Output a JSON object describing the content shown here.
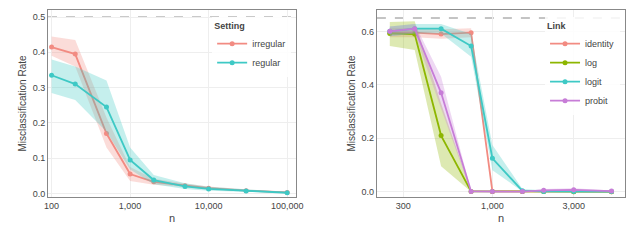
{
  "chart_data": [
    {
      "type": "line",
      "x_label": "n",
      "y_label": "Misclassification Rate",
      "log": "x",
      "grid": true,
      "xlim": [
        90,
        130000
      ],
      "ylim": [
        -0.01,
        0.52
      ],
      "xticks": [
        100,
        {
          "value": 1000,
          "label": "1,000"
        },
        {
          "value": 10000,
          "label": "10,000"
        },
        {
          "value": 100000,
          "label": "100,000"
        }
      ],
      "yticks": [
        {
          "value": 0.0,
          "label": "0.0"
        },
        0.1,
        0.2,
        0.3,
        0.4,
        0.5
      ],
      "reference_lines": [
        {
          "y": 0.5,
          "line_style": "dashed",
          "color": "#888888"
        }
      ],
      "legend": "upper right",
      "legend_title": "Setting",
      "marker": "circle",
      "series": [
        {
          "name": "irregular",
          "color": "#F28B82",
          "x": [
            100,
            200,
            500,
            1000,
            2000,
            5000,
            10000,
            30000,
            100000
          ],
          "values": [
            0.415,
            0.395,
            0.17,
            0.055,
            0.033,
            0.022,
            0.015,
            0.008,
            0.003
          ],
          "lower": [
            0.39,
            0.36,
            0.13,
            0.035,
            0.025,
            0.018,
            0.012,
            0.006,
            0.002
          ],
          "upper": [
            0.445,
            0.435,
            0.215,
            0.075,
            0.042,
            0.028,
            0.02,
            0.011,
            0.005
          ]
        },
        {
          "name": "regular",
          "color": "#3EC9C5",
          "x": [
            100,
            200,
            500,
            1000,
            2000,
            5000,
            10000,
            30000,
            100000
          ],
          "values": [
            0.335,
            0.31,
            0.245,
            0.095,
            0.038,
            0.02,
            0.013,
            0.007,
            0.002
          ],
          "lower": [
            0.285,
            0.265,
            0.175,
            0.068,
            0.026,
            0.013,
            0.008,
            0.005,
            0.001
          ],
          "upper": [
            0.38,
            0.36,
            0.32,
            0.13,
            0.052,
            0.029,
            0.019,
            0.011,
            0.004
          ]
        }
      ]
    },
    {
      "type": "line",
      "x_label": "n",
      "y_label": "Misclassification Rate",
      "log": "x",
      "grid": true,
      "xlim": [
        210,
        6000
      ],
      "ylim": [
        -0.02,
        0.68
      ],
      "xticks": [
        300,
        {
          "value": 1000,
          "label": "1,000"
        },
        {
          "value": 3000,
          "label": "3,000"
        }
      ],
      "yticks": [
        {
          "value": 0.0,
          "label": "0.0"
        },
        0.2,
        0.4,
        0.6
      ],
      "reference_lines": [
        {
          "y": 0.65,
          "line_style": "dashed",
          "color": "#888888"
        }
      ],
      "legend": "upper right",
      "legend_title": "Link",
      "marker": "circle",
      "series": [
        {
          "name": "identity",
          "color": "#F28B82",
          "x": [
            250,
            350,
            500,
            750,
            1000,
            1500,
            2000,
            3000,
            5000
          ],
          "values": [
            0.595,
            0.595,
            0.59,
            0.595,
            0.001,
            0.0003,
            0.0002,
            0.0001,
            0.0001
          ],
          "lower": [
            0.578,
            0.578,
            0.572,
            0.578,
            0.0,
            0.0,
            0.0,
            0.0,
            0.0
          ],
          "upper": [
            0.612,
            0.612,
            0.608,
            0.612,
            0.003,
            0.001,
            0.0005,
            0.0002,
            0.0002
          ]
        },
        {
          "name": "log",
          "color": "#8DB600",
          "x": [
            250,
            350,
            500,
            750,
            1000,
            1500,
            2000,
            3000,
            5000
          ],
          "values": [
            0.592,
            0.59,
            0.21,
            0.001,
            0.0008,
            0.0003,
            0.0002,
            0.0001,
            0.0001
          ],
          "lower": [
            0.545,
            0.53,
            0.095,
            0.0,
            0.0,
            0.0,
            0.0,
            0.0,
            0.0
          ],
          "upper": [
            0.635,
            0.638,
            0.33,
            0.004,
            0.002,
            0.001,
            0.0005,
            0.0002,
            0.0002
          ]
        },
        {
          "name": "logit",
          "color": "#3EC9C5",
          "x": [
            250,
            350,
            500,
            750,
            1000,
            1500,
            2000,
            3000,
            5000
          ],
          "values": [
            0.6,
            0.61,
            0.61,
            0.545,
            0.125,
            0.003,
            0.001,
            0.0005,
            0.0002
          ],
          "lower": [
            0.582,
            0.592,
            0.592,
            0.505,
            0.08,
            0.001,
            0.0,
            0.0,
            0.0
          ],
          "upper": [
            0.618,
            0.628,
            0.628,
            0.59,
            0.175,
            0.01,
            0.005,
            0.002,
            0.001
          ]
        },
        {
          "name": "probit",
          "color": "#C77DD7",
          "x": [
            250,
            350,
            500,
            750,
            1000,
            1500,
            2000,
            3000,
            5000
          ],
          "values": [
            0.6,
            0.61,
            0.37,
            0.001,
            0.0005,
            0.0003,
            0.005,
            0.007,
            0.002
          ],
          "lower": [
            0.582,
            0.592,
            0.31,
            0.0,
            0.0,
            0.0,
            0.003,
            0.004,
            0.001
          ],
          "upper": [
            0.618,
            0.628,
            0.43,
            0.003,
            0.002,
            0.001,
            0.01,
            0.013,
            0.004
          ]
        }
      ]
    }
  ]
}
